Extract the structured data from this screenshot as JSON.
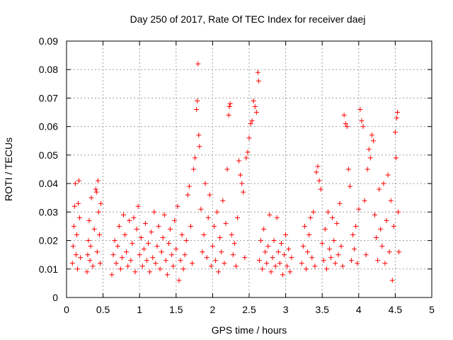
{
  "chart_data": {
    "type": "scatter",
    "title": "Day 250 of 2017, Rate Of TEC Index for receiver daej",
    "xlabel": "GPS time / hours",
    "ylabel": "ROTI / TECUs",
    "xlim": [
      0,
      5
    ],
    "ylim": [
      0,
      0.09
    ],
    "xticks": [
      0,
      0.5,
      1,
      1.5,
      2,
      2.5,
      3,
      3.5,
      4,
      4.5,
      5
    ],
    "xtick_labels": [
      "0",
      "0.5",
      "1",
      "1.5",
      "2",
      "2.5",
      "3",
      "3.5",
      "4",
      "4.5",
      "5"
    ],
    "yticks": [
      0,
      0.01,
      0.02,
      0.03,
      0.04,
      0.05,
      0.06,
      0.07,
      0.08,
      0.09
    ],
    "ytick_labels": [
      "0",
      "0.01",
      "0.02",
      "0.03",
      "0.04",
      "0.05",
      "0.06",
      "0.07",
      "0.08",
      "0.09"
    ],
    "grid": true,
    "marker": "+",
    "color": "#ff0000",
    "series": [
      {
        "name": "ROTI",
        "points": [
          [
            0.08,
            0.012
          ],
          [
            0.09,
            0.018
          ],
          [
            0.1,
            0.025
          ],
          [
            0.11,
            0.032
          ],
          [
            0.12,
            0.04
          ],
          [
            0.13,
            0.015
          ],
          [
            0.14,
            0.022
          ],
          [
            0.15,
            0.01
          ],
          [
            0.16,
            0.033
          ],
          [
            0.17,
            0.041
          ],
          [
            0.18,
            0.028
          ],
          [
            0.19,
            0.014
          ],
          [
            0.28,
            0.009
          ],
          [
            0.29,
            0.015
          ],
          [
            0.3,
            0.02
          ],
          [
            0.31,
            0.027
          ],
          [
            0.32,
            0.013
          ],
          [
            0.33,
            0.018
          ],
          [
            0.34,
            0.035
          ],
          [
            0.36,
            0.011
          ],
          [
            0.38,
            0.024
          ],
          [
            0.4,
            0.038
          ],
          [
            0.41,
            0.037
          ],
          [
            0.42,
            0.016
          ],
          [
            0.43,
            0.041
          ],
          [
            0.44,
            0.03
          ],
          [
            0.45,
            0.022
          ],
          [
            0.46,
            0.012
          ],
          [
            0.47,
            0.033
          ],
          [
            0.62,
            0.008
          ],
          [
            0.64,
            0.015
          ],
          [
            0.66,
            0.02
          ],
          [
            0.68,
            0.012
          ],
          [
            0.7,
            0.018
          ],
          [
            0.72,
            0.025
          ],
          [
            0.74,
            0.01
          ],
          [
            0.76,
            0.014
          ],
          [
            0.78,
            0.029
          ],
          [
            0.8,
            0.022
          ],
          [
            0.82,
            0.016
          ],
          [
            0.84,
            0.011
          ],
          [
            0.86,
            0.027
          ],
          [
            0.88,
            0.013
          ],
          [
            0.9,
            0.019
          ],
          [
            0.92,
            0.028
          ],
          [
            0.94,
            0.009
          ],
          [
            0.96,
            0.024
          ],
          [
            0.98,
            0.032
          ],
          [
            1.0,
            0.015
          ],
          [
            1.02,
            0.021
          ],
          [
            1.04,
            0.011
          ],
          [
            1.06,
            0.017
          ],
          [
            1.08,
            0.026
          ],
          [
            1.1,
            0.013
          ],
          [
            1.12,
            0.019
          ],
          [
            1.14,
            0.009
          ],
          [
            1.16,
            0.023
          ],
          [
            1.18,
            0.014
          ],
          [
            1.2,
            0.03
          ],
          [
            1.22,
            0.012
          ],
          [
            1.24,
            0.018
          ],
          [
            1.26,
            0.025
          ],
          [
            1.28,
            0.01
          ],
          [
            1.3,
            0.016
          ],
          [
            1.32,
            0.021
          ],
          [
            1.34,
            0.029
          ],
          [
            1.36,
            0.013
          ],
          [
            1.38,
            0.008
          ],
          [
            1.4,
            0.019
          ],
          [
            1.42,
            0.024
          ],
          [
            1.44,
            0.015
          ],
          [
            1.46,
            0.011
          ],
          [
            1.48,
            0.027
          ],
          [
            1.5,
            0.017
          ],
          [
            1.52,
            0.032
          ],
          [
            1.54,
            0.006
          ],
          [
            1.56,
            0.013
          ],
          [
            1.58,
            0.022
          ],
          [
            1.6,
            0.01
          ],
          [
            1.62,
            0.015
          ],
          [
            1.64,
            0.02
          ],
          [
            1.66,
            0.036
          ],
          [
            1.68,
            0.039
          ],
          [
            1.7,
            0.025
          ],
          [
            1.72,
            0.012
          ],
          [
            1.74,
            0.045
          ],
          [
            1.76,
            0.049
          ],
          [
            1.78,
            0.066
          ],
          [
            1.79,
            0.069
          ],
          [
            1.8,
            0.082
          ],
          [
            1.81,
            0.057
          ],
          [
            1.82,
            0.053
          ],
          [
            1.84,
            0.031
          ],
          [
            1.86,
            0.016
          ],
          [
            1.88,
            0.022
          ],
          [
            1.9,
            0.04
          ],
          [
            1.92,
            0.014
          ],
          [
            1.94,
            0.028
          ],
          [
            1.96,
            0.036
          ],
          [
            1.98,
            0.011
          ],
          [
            2.0,
            0.018
          ],
          [
            2.02,
            0.025
          ],
          [
            2.04,
            0.013
          ],
          [
            2.06,
            0.03
          ],
          [
            2.08,
            0.009
          ],
          [
            2.1,
            0.021
          ],
          [
            2.12,
            0.016
          ],
          [
            2.14,
            0.034
          ],
          [
            2.16,
            0.012
          ],
          [
            2.18,
            0.026
          ],
          [
            2.2,
            0.045
          ],
          [
            2.22,
            0.064
          ],
          [
            2.23,
            0.067
          ],
          [
            2.24,
            0.068
          ],
          [
            2.26,
            0.022
          ],
          [
            2.28,
            0.015
          ],
          [
            2.3,
            0.019
          ],
          [
            2.32,
            0.011
          ],
          [
            2.34,
            0.028
          ],
          [
            2.36,
            0.048
          ],
          [
            2.38,
            0.043
          ],
          [
            2.4,
            0.04
          ],
          [
            2.42,
            0.037
          ],
          [
            2.44,
            0.014
          ],
          [
            2.46,
            0.049
          ],
          [
            2.48,
            0.051
          ],
          [
            2.5,
            0.056
          ],
          [
            2.52,
            0.061
          ],
          [
            2.54,
            0.062
          ],
          [
            2.56,
            0.069
          ],
          [
            2.58,
            0.067
          ],
          [
            2.6,
            0.065
          ],
          [
            2.62,
            0.079
          ],
          [
            2.63,
            0.076
          ],
          [
            2.64,
            0.013
          ],
          [
            2.66,
            0.02
          ],
          [
            2.68,
            0.01
          ],
          [
            2.7,
            0.024
          ],
          [
            2.72,
            0.016
          ],
          [
            2.74,
            0.012
          ],
          [
            2.76,
            0.018
          ],
          [
            2.78,
            0.029
          ],
          [
            2.8,
            0.009
          ],
          [
            2.82,
            0.014
          ],
          [
            2.84,
            0.02
          ],
          [
            2.86,
            0.011
          ],
          [
            2.88,
            0.028
          ],
          [
            2.9,
            0.016
          ],
          [
            2.92,
            0.012
          ],
          [
            2.94,
            0.019
          ],
          [
            2.96,
            0.008
          ],
          [
            2.98,
            0.015
          ],
          [
            3.0,
            0.022
          ],
          [
            3.02,
            0.011
          ],
          [
            3.04,
            0.017
          ],
          [
            3.06,
            0.009
          ],
          [
            3.08,
            0.014
          ],
          [
            3.22,
            0.012
          ],
          [
            3.24,
            0.018
          ],
          [
            3.26,
            0.025
          ],
          [
            3.28,
            0.01
          ],
          [
            3.3,
            0.016
          ],
          [
            3.32,
            0.022
          ],
          [
            3.34,
            0.028
          ],
          [
            3.36,
            0.014
          ],
          [
            3.38,
            0.03
          ],
          [
            3.4,
            0.011
          ],
          [
            3.42,
            0.044
          ],
          [
            3.44,
            0.046
          ],
          [
            3.46,
            0.041
          ],
          [
            3.48,
            0.038
          ],
          [
            3.5,
            0.019
          ],
          [
            3.52,
            0.013
          ],
          [
            3.54,
            0.024
          ],
          [
            3.56,
            0.01
          ],
          [
            3.58,
            0.03
          ],
          [
            3.6,
            0.017
          ],
          [
            3.62,
            0.014
          ],
          [
            3.64,
            0.028
          ],
          [
            3.66,
            0.02
          ],
          [
            3.68,
            0.012
          ],
          [
            3.7,
            0.026
          ],
          [
            3.72,
            0.015
          ],
          [
            3.74,
            0.033
          ],
          [
            3.76,
            0.018
          ],
          [
            3.78,
            0.011
          ],
          [
            3.8,
            0.064
          ],
          [
            3.82,
            0.061
          ],
          [
            3.84,
            0.06
          ],
          [
            3.86,
            0.045
          ],
          [
            3.88,
            0.039
          ],
          [
            3.9,
            0.013
          ],
          [
            3.92,
            0.022
          ],
          [
            3.94,
            0.017
          ],
          [
            3.96,
            0.025
          ],
          [
            3.98,
            0.012
          ],
          [
            4.0,
            0.031
          ],
          [
            4.02,
            0.066
          ],
          [
            4.04,
            0.062
          ],
          [
            4.06,
            0.06
          ],
          [
            4.08,
            0.034
          ],
          [
            4.1,
            0.015
          ],
          [
            4.12,
            0.045
          ],
          [
            4.14,
            0.052
          ],
          [
            4.16,
            0.049
          ],
          [
            4.18,
            0.057
          ],
          [
            4.2,
            0.055
          ],
          [
            4.22,
            0.029
          ],
          [
            4.24,
            0.021
          ],
          [
            4.26,
            0.013
          ],
          [
            4.28,
            0.038
          ],
          [
            4.3,
            0.024
          ],
          [
            4.32,
            0.018
          ],
          [
            4.34,
            0.04
          ],
          [
            4.36,
            0.012
          ],
          [
            4.38,
            0.027
          ],
          [
            4.4,
            0.043
          ],
          [
            4.42,
            0.016
          ],
          [
            4.44,
            0.034
          ],
          [
            4.46,
            0.006
          ],
          [
            4.48,
            0.025
          ],
          [
            4.5,
            0.058
          ],
          [
            4.51,
            0.049
          ],
          [
            4.52,
            0.063
          ],
          [
            4.53,
            0.065
          ],
          [
            4.54,
            0.03
          ],
          [
            4.55,
            0.016
          ]
        ]
      }
    ]
  }
}
